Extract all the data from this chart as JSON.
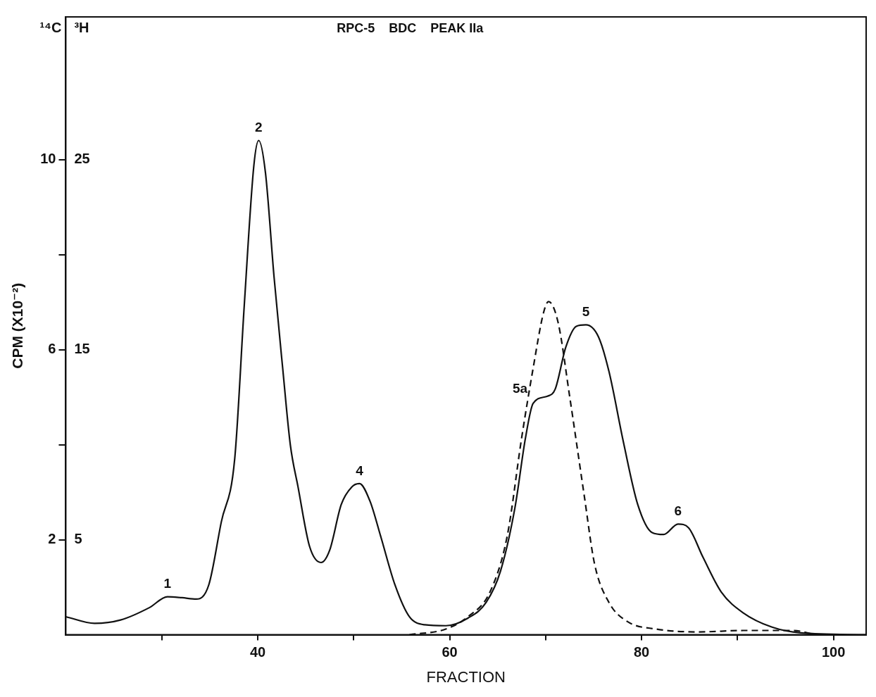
{
  "chart_data": {
    "type": "line",
    "title": "RPC-5    BDC    PEAK IIa",
    "xlabel": "FRACTION",
    "ylabel": "CPM (X10⁻²)",
    "xlim": [
      20,
      103.4
    ],
    "xticks": [
      {
        "value": 30,
        "label": null
      },
      40,
      {
        "value": 50,
        "label": null
      },
      60,
      {
        "value": 70,
        "label": null
      },
      80,
      {
        "value": 90,
        "label": null
      },
      100
    ],
    "ylim": [
      0,
      13
    ],
    "yticks": [
      2,
      {
        "value": 4,
        "label": null
      },
      6,
      {
        "value": 8,
        "label": null
      },
      10
    ],
    "y2lim": [
      0,
      32.5
    ],
    "y2ticks": [
      5,
      15,
      25
    ],
    "grid": false,
    "legend": false,
    "marker": "none",
    "series": [
      {
        "color": "#111111",
        "line_style": "solid",
        "x": [
          20,
          23.0,
          25.7,
          28.7,
          30.6,
          32.1,
          33.6,
          34.9,
          36.2,
          37.6,
          38.6,
          39.6,
          40.1,
          40.8,
          41.7,
          42.6,
          43.4,
          44.2,
          45.4,
          46.6,
          47.5,
          48.7,
          49.8,
          50.6,
          51.7,
          52.8,
          54.3,
          55.8,
          57.4,
          59.6,
          61.9,
          63.8,
          65.3,
          66.8,
          67.9,
          68.7,
          70.2,
          71.0,
          72.1,
          73.2,
          74.2,
          75.5,
          76.6,
          78.1,
          79.6,
          81.1,
          82.3,
          83.8,
          84.9,
          86.4,
          88.3,
          90.6,
          93.6,
          96.6,
          103.4
        ],
        "values": [
          0.38,
          0.24,
          0.31,
          0.57,
          0.8,
          0.78,
          0.75,
          1.05,
          2.37,
          3.7,
          6.94,
          9.88,
          10.4,
          9.73,
          7.53,
          5.61,
          3.99,
          3.11,
          1.86,
          1.52,
          1.78,
          2.74,
          3.11,
          3.18,
          2.81,
          2.08,
          1.05,
          0.38,
          0.21,
          0.19,
          0.35,
          0.68,
          1.34,
          2.67,
          4.14,
          4.87,
          5.02,
          5.17,
          6.05,
          6.49,
          6.52,
          6.27,
          5.54,
          4.06,
          2.74,
          2.15,
          2.11,
          2.33,
          2.25,
          1.63,
          0.9,
          0.46,
          0.16,
          0.04,
          0
        ]
      },
      {
        "color": "#111111",
        "line_style": "dashed",
        "x": [
          55.8,
          59.6,
          61.9,
          64.2,
          66.0,
          67.5,
          68.7,
          69.8,
          70.3,
          71.3,
          72.5,
          74.0,
          75.1,
          76.6,
          78.5,
          81.5,
          86.0,
          90.6,
          95.8,
          98.1
        ],
        "values": [
          0,
          0.12,
          0.38,
          0.9,
          2.08,
          4.14,
          5.61,
          6.79,
          7.01,
          6.57,
          5.02,
          2.96,
          1.49,
          0.68,
          0.28,
          0.12,
          0.06,
          0.09,
          0.09,
          0
        ]
      }
    ],
    "annotations": [
      "¹⁴C",
      "³H",
      {
        "text": "1",
        "x": 30.6,
        "y": 0.8
      },
      {
        "text": "2",
        "x": 40.1,
        "y": 10.4
      },
      {
        "text": "4",
        "x": 50.6,
        "y": 3.18
      },
      {
        "text": "5a",
        "x": 68.7,
        "y": 4.87
      },
      {
        "text": "5",
        "x": 74.2,
        "y": 6.52
      },
      {
        "text": "6",
        "x": 83.8,
        "y": 2.33
      }
    ]
  }
}
